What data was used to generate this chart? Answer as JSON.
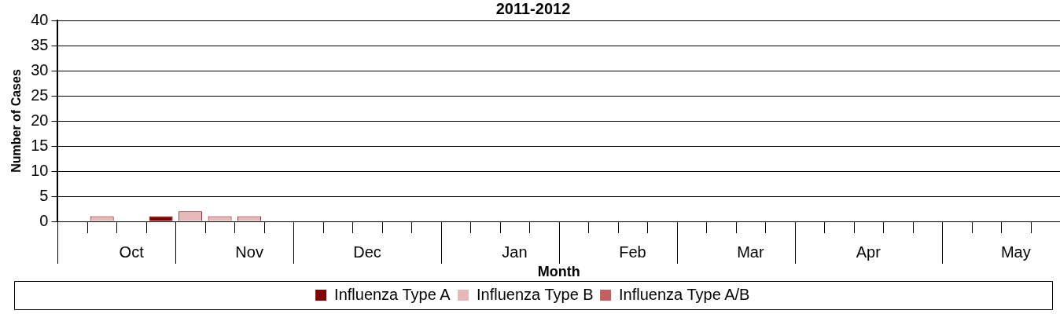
{
  "chart_data": {
    "type": "bar",
    "title": "2011-2012",
    "xlabel": "Month",
    "ylabel": "Number of Cases",
    "categories": [
      null,
      null,
      "Oct",
      null,
      null,
      null,
      "Nov",
      null,
      null,
      null,
      "Dec",
      null,
      null,
      null,
      null,
      "Jan",
      null,
      null,
      null,
      "Feb",
      null,
      null,
      null,
      "Mar",
      null,
      null,
      null,
      "Apr",
      null,
      null,
      null,
      null,
      "May",
      null
    ],
    "series": [
      {
        "name": "Influenza Type A",
        "color": "#800000",
        "values": [
          0,
          0,
          0,
          1,
          0,
          0,
          0,
          0,
          0,
          0,
          0,
          0,
          0,
          0,
          0,
          0,
          0,
          0,
          0,
          0,
          0,
          0,
          0,
          0,
          0,
          0,
          0,
          0,
          0,
          0,
          0,
          0,
          0,
          0
        ]
      },
      {
        "name": "Influenza Type B",
        "color": "#e6b8b8",
        "values": [
          0,
          1,
          0,
          0,
          2,
          1,
          1,
          0,
          0,
          0,
          0,
          0,
          0,
          0,
          0,
          0,
          0,
          0,
          0,
          0,
          0,
          0,
          0,
          0,
          0,
          0,
          0,
          0,
          0,
          0,
          0,
          0,
          0,
          0
        ]
      },
      {
        "name": "Influenza Type A/B",
        "color": "#c06060",
        "values": [
          0,
          0,
          0,
          0,
          0,
          0,
          0,
          0,
          0,
          0,
          0,
          0,
          0,
          0,
          0,
          0,
          0,
          0,
          0,
          0,
          0,
          0,
          0,
          0,
          0,
          0,
          0,
          0,
          0,
          0,
          0,
          0,
          0,
          0
        ]
      }
    ],
    "stacked": true,
    "ylim": [
      0,
      40
    ],
    "yticks": [
      0,
      5,
      10,
      15,
      20,
      25,
      30,
      35,
      40
    ],
    "grid": "y",
    "legend": "bottom"
  }
}
